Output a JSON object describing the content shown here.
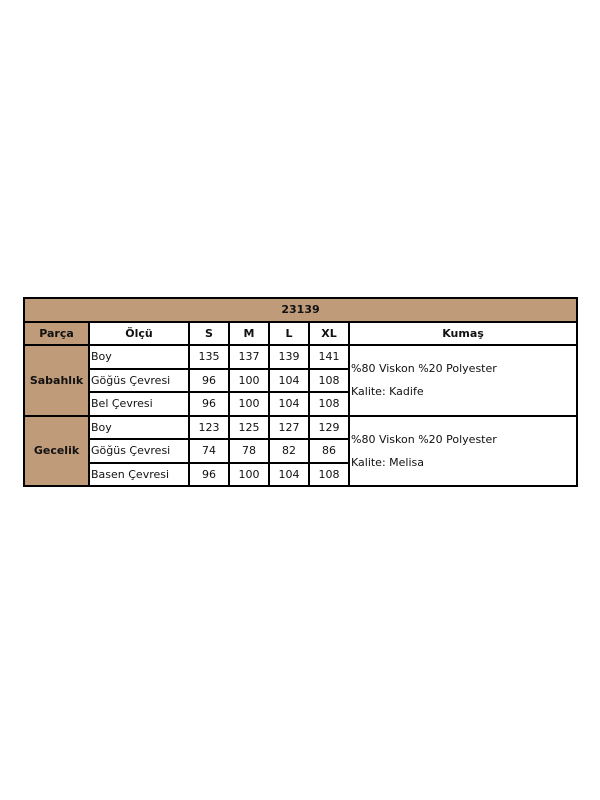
{
  "title": "23139",
  "headers": [
    "Parça",
    "Ölçü",
    "S",
    "M",
    "L",
    "XL",
    "Kumaş"
  ],
  "groups": [
    {
      "part": "Sabahlık",
      "rows": [
        {
          "measure": "Boy",
          "values": [
            "135",
            "137",
            "139",
            "141"
          ]
        },
        {
          "measure": "Göğüs Çevresi",
          "values": [
            "96",
            "100",
            "104",
            "108"
          ]
        },
        {
          "measure": "Bel Çevresi",
          "values": [
            "96",
            "100",
            "104",
            "108"
          ]
        }
      ],
      "fabric": "%80 Viskon %20 Polyester",
      "quality": "Kalite: Kadife"
    },
    {
      "part": "Gecelik",
      "rows": [
        {
          "measure": "Boy",
          "values": [
            "123",
            "125",
            "127",
            "129"
          ]
        },
        {
          "measure": "Göğüs Çevresi",
          "values": [
            "74",
            "78",
            "82",
            "86"
          ]
        },
        {
          "measure": "Basen Çevresi",
          "values": [
            "96",
            "100",
            "104",
            "108"
          ]
        }
      ],
      "fabric": "%80 Viskon %20 Polyester",
      "quality": "Kalite: Melisa"
    }
  ],
  "colors": {
    "header_bg": "#bf9b7a",
    "border": "#000000"
  }
}
